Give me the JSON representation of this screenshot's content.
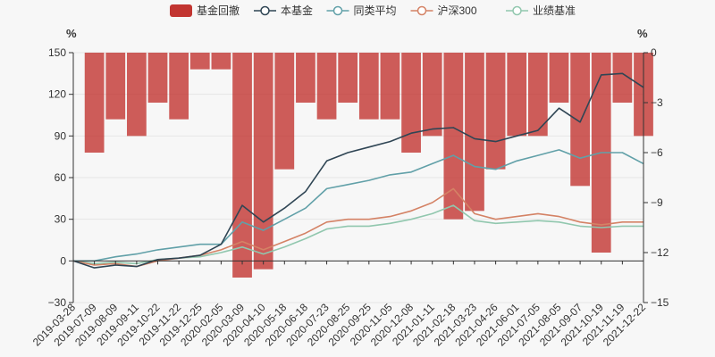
{
  "chart_data": {
    "type": "line",
    "legend": {
      "position": "top-center",
      "items": [
        {
          "name": "基金回撤",
          "symbol": "bar",
          "color": "#c23531"
        },
        {
          "name": "本基金",
          "symbol": "circle",
          "color": "#2f4554"
        },
        {
          "name": "同类平均",
          "symbol": "circle",
          "color": "#61a0a8"
        },
        {
          "name": "沪深300",
          "symbol": "circle",
          "color": "#d48265"
        },
        {
          "name": "业绩基准",
          "symbol": "circle",
          "color": "#91c7ae"
        }
      ]
    },
    "y_left": {
      "unit": "%",
      "min": -30,
      "max": 150,
      "ticks": [
        -30,
        0,
        30,
        60,
        90,
        120,
        150
      ]
    },
    "y_right": {
      "unit": "%",
      "min": -15,
      "max": 0,
      "ticks": [
        -15,
        -12,
        -9,
        -6,
        -3,
        0
      ]
    },
    "x_labels": [
      "2019-03-28",
      "2019-07-09",
      "2019-08-09",
      "2019-09-11",
      "2019-10-22",
      "2019-11-22",
      "2019-12-25",
      "2020-02-05",
      "2020-03-09",
      "2020-04-10",
      "2020-05-18",
      "2020-06-18",
      "2020-07-23",
      "2020-08-25",
      "2020-09-25",
      "2020-11-05",
      "2020-12-08",
      "2021-01-11",
      "2021-02-18",
      "2021-03-23",
      "2021-04-26",
      "2021-06-01",
      "2021-07-05",
      "2021-08-05",
      "2021-09-07",
      "2021-10-19",
      "2021-11-19",
      "2021-12-22"
    ],
    "series": [
      {
        "name": "本基金",
        "axis": "left",
        "color": "#2f4554",
        "values": [
          0,
          -5,
          -3,
          -4,
          1,
          2,
          4,
          12,
          40,
          28,
          38,
          50,
          72,
          78,
          82,
          86,
          92,
          95,
          96,
          88,
          86,
          90,
          94,
          110,
          100,
          134,
          135,
          125
        ]
      },
      {
        "name": "同类平均",
        "axis": "left",
        "color": "#61a0a8",
        "values": [
          0,
          0,
          3,
          5,
          8,
          10,
          12,
          12,
          28,
          22,
          30,
          38,
          52,
          55,
          58,
          62,
          64,
          70,
          76,
          68,
          66,
          72,
          76,
          80,
          74,
          78,
          78,
          70
        ]
      },
      {
        "name": "沪深300",
        "axis": "left",
        "color": "#d48265",
        "values": [
          0,
          -3,
          -2,
          -4,
          0,
          2,
          4,
          8,
          14,
          8,
          14,
          20,
          28,
          30,
          30,
          32,
          36,
          42,
          52,
          34,
          30,
          32,
          34,
          32,
          28,
          26,
          28,
          28
        ]
      },
      {
        "name": "业绩基准",
        "axis": "left",
        "color": "#91c7ae",
        "values": [
          0,
          -2,
          -1,
          -2,
          1,
          2,
          3,
          6,
          10,
          5,
          10,
          16,
          23,
          25,
          25,
          27,
          30,
          34,
          40,
          29,
          27,
          28,
          29,
          28,
          25,
          24,
          25,
          25
        ]
      },
      {
        "name": "基金回撤",
        "axis": "right",
        "color": "#c23531",
        "type": "bar",
        "values": [
          0,
          -6,
          -4,
          -5,
          -3,
          -4,
          -1,
          -1,
          -13.5,
          -13,
          -7,
          -3,
          -4,
          -3,
          -4,
          -4,
          -6,
          -5,
          -10,
          -9.5,
          -7,
          -5,
          -5,
          -3,
          -8,
          -12,
          -3,
          -5
        ]
      }
    ]
  }
}
